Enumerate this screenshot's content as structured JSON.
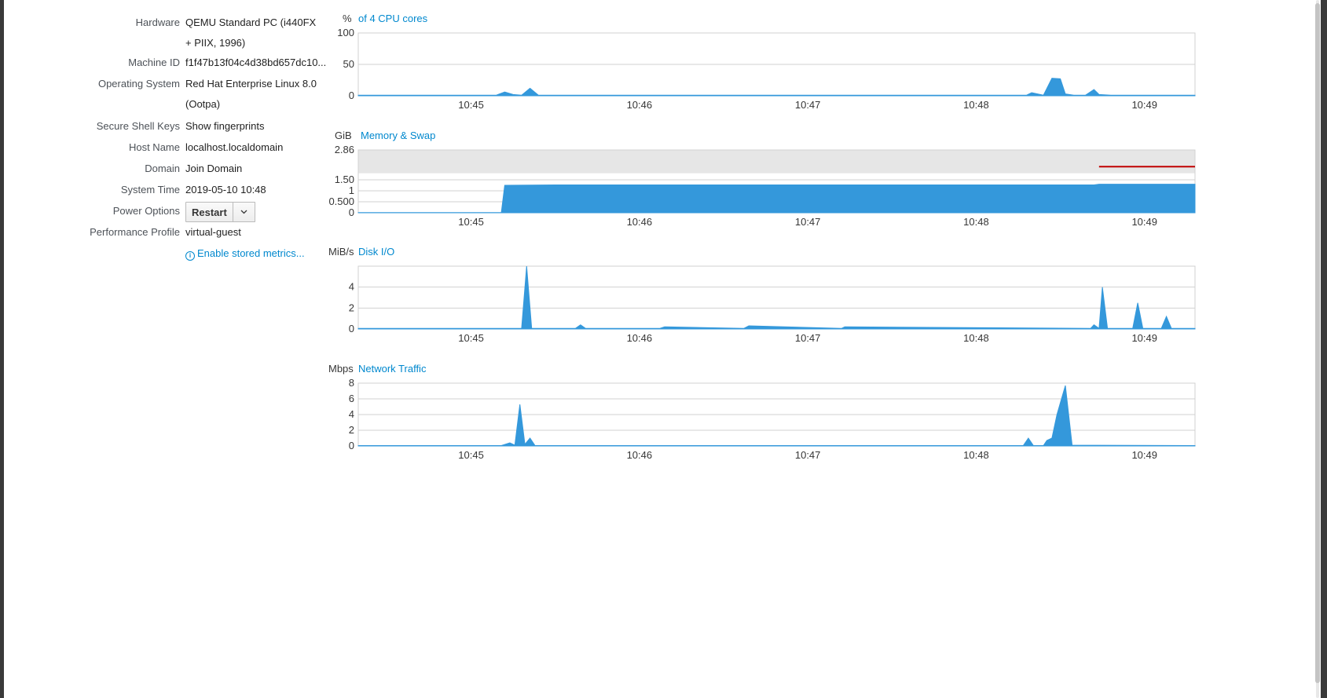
{
  "system": {
    "hardware": {
      "label": "Hardware",
      "value": "QEMU Standard PC (i440FX + PIIX, 1996)"
    },
    "machine_id": {
      "label": "Machine ID",
      "value": "f1f47b13f04c4d38bd657dc10..."
    },
    "os": {
      "label": "Operating System",
      "value": "Red Hat Enterprise Linux 8.0 (Ootpa)"
    },
    "ssh_keys": {
      "label": "Secure Shell Keys",
      "value": "Show fingerprints"
    },
    "host_name": {
      "label": "Host Name",
      "value": "localhost.localdomain"
    },
    "domain": {
      "label": "Domain",
      "value": "Join Domain"
    },
    "system_time": {
      "label": "System Time",
      "value": "2019-05-10 10:48"
    },
    "power": {
      "label": "Power Options",
      "button": "Restart",
      "caret_icon": "chevron-down-icon"
    },
    "performance": {
      "label": "Performance Profile",
      "value": "virtual-guest"
    },
    "metrics_link": "Enable stored metrics...",
    "metrics_icon": "info-circle-icon"
  },
  "colors": {
    "accent": "#0088ce",
    "series": "#3498db",
    "swap_line": "#c00000",
    "grid": "#d1d1d1"
  },
  "graphs": {
    "cpu": {
      "unit": "%",
      "title": "of 4 CPU cores"
    },
    "memory": {
      "unit": "GiB",
      "title": "Memory & Swap"
    },
    "disk": {
      "unit": "MiB/s",
      "title": "Disk I/O"
    },
    "network": {
      "unit": "Mbps",
      "title": "Network Traffic"
    }
  },
  "chart_data": [
    {
      "type": "area",
      "title": "of 4 CPU cores",
      "ylabel": "%",
      "x_ticks": [
        "10:45",
        "10:46",
        "10:47",
        "10:48",
        "10:49"
      ],
      "xlim_minutes": [
        44.33,
        49.3
      ],
      "y_ticks": [
        "0",
        "50",
        "100"
      ],
      "ylim": [
        0,
        100
      ],
      "grid": true,
      "series": [
        {
          "x": [
            44.33,
            45.15,
            45.2,
            45.25,
            45.3,
            45.35,
            45.4,
            48.3,
            48.33,
            48.4,
            48.45,
            48.5,
            48.53,
            48.58,
            48.65,
            48.7,
            48.73,
            48.8,
            49.3
          ],
          "values": [
            1,
            1,
            6,
            2,
            1,
            12,
            1,
            1,
            5,
            1,
            28,
            27,
            3,
            1,
            1,
            10,
            2,
            1,
            1
          ]
        }
      ]
    },
    {
      "type": "area",
      "title": "Memory & Swap",
      "ylabel": "GiB",
      "x_ticks": [
        "10:45",
        "10:46",
        "10:47",
        "10:48",
        "10:49"
      ],
      "xlim_minutes": [
        44.33,
        49.3
      ],
      "y_ticks": [
        "0",
        "0.500",
        "1",
        "1.50",
        "2.86"
      ],
      "ylim": [
        0,
        2.86
      ],
      "grid": true,
      "swap_region": [
        1.8,
        2.86
      ],
      "series": [
        {
          "x": [
            44.33,
            45.18,
            45.2,
            45.5,
            48.7,
            48.73,
            49.3
          ],
          "values": [
            0.01,
            0.01,
            1.25,
            1.27,
            1.27,
            1.3,
            1.3
          ]
        }
      ],
      "swap_line": {
        "x": [
          48.73,
          49.3
        ],
        "values": [
          2.1,
          2.1
        ]
      }
    },
    {
      "type": "area",
      "title": "Disk I/O",
      "ylabel": "MiB/s",
      "x_ticks": [
        "10:45",
        "10:46",
        "10:47",
        "10:48",
        "10:49"
      ],
      "xlim_minutes": [
        44.33,
        49.3
      ],
      "y_ticks": [
        "0",
        "2",
        "4"
      ],
      "ylim": [
        0,
        6
      ],
      "grid": true,
      "series": [
        {
          "x": [
            44.33,
            45.3,
            45.33,
            45.36,
            45.62,
            45.65,
            45.68,
            46.12,
            46.15,
            46.62,
            46.65,
            47.2,
            47.22,
            48.68,
            48.7,
            48.73,
            48.75,
            48.78,
            48.93,
            48.96,
            48.99,
            49.1,
            49.13,
            49.16,
            49.3
          ],
          "values": [
            0.05,
            0.05,
            6,
            0.05,
            0.05,
            0.4,
            0.05,
            0.05,
            0.2,
            0.05,
            0.3,
            0.05,
            0.2,
            0.05,
            0.4,
            0.05,
            4,
            0.05,
            0.05,
            2.5,
            0.05,
            0.05,
            1.2,
            0.05,
            0.05
          ]
        }
      ]
    },
    {
      "type": "area",
      "title": "Network Traffic",
      "ylabel": "Mbps",
      "x_ticks": [
        "10:45",
        "10:46",
        "10:47",
        "10:48",
        "10:49"
      ],
      "xlim_minutes": [
        44.33,
        49.3
      ],
      "y_ticks": [
        "0",
        "2",
        "4",
        "6",
        "8"
      ],
      "ylim": [
        0,
        8
      ],
      "grid": true,
      "series": [
        {
          "x": [
            44.33,
            45.18,
            45.23,
            45.26,
            45.29,
            45.32,
            45.35,
            45.38,
            48.28,
            48.31,
            48.34,
            48.4,
            48.42,
            48.45,
            48.48,
            48.5,
            48.53,
            48.57,
            49.3
          ],
          "values": [
            0.05,
            0.05,
            0.4,
            0.1,
            5.3,
            0.2,
            1,
            0.05,
            0.05,
            1,
            0.05,
            0.05,
            0.7,
            1,
            4,
            5.5,
            7.7,
            0.1,
            0.05
          ]
        }
      ]
    }
  ]
}
